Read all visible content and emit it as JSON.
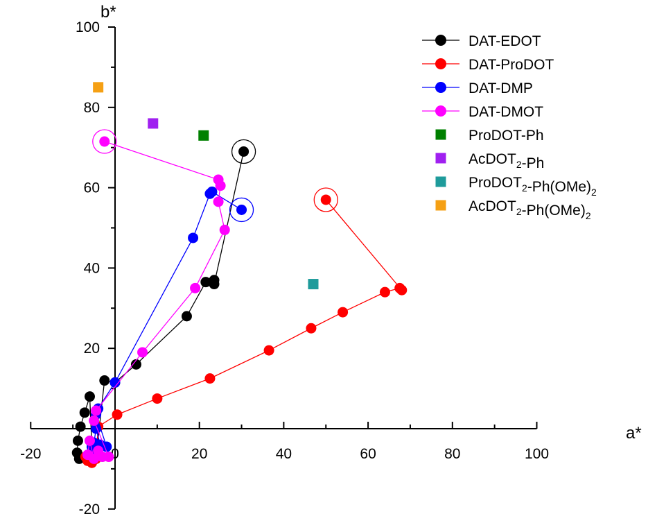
{
  "chart_data": {
    "type": "scatter",
    "xlabel": "a*",
    "ylabel": "b*",
    "xlim": [
      -20,
      100
    ],
    "ylim": [
      -20,
      100
    ],
    "xticks": [
      -20,
      0,
      20,
      40,
      60,
      80,
      100
    ],
    "yticks": [
      -20,
      20,
      40,
      60,
      80,
      100
    ],
    "grid": false,
    "legend_position": "top-right",
    "series": [
      {
        "name": "DAT-EDOT",
        "color": "#000000",
        "marker": "circle",
        "connected": true,
        "x": [
          -8.5,
          -9.0,
          -8.8,
          -8.2,
          -7.2,
          -6.0,
          -5.5,
          -4.5,
          -2.5,
          0.0,
          5.0,
          17.0,
          21.5,
          23.5,
          23.5,
          30.5
        ],
        "y": [
          -7.5,
          -6.0,
          -3.0,
          0.5,
          4.0,
          8.0,
          -4.5,
          -7.0,
          12.0,
          11.5,
          16.0,
          28.0,
          36.5,
          37.0,
          36.0,
          69.0
        ],
        "endpoint_ring": [
          30.5,
          69.0
        ]
      },
      {
        "name": "DAT-ProDOT",
        "color": "#ff0000",
        "marker": "circle",
        "connected": true,
        "x": [
          -7.0,
          -6.5,
          -5.5,
          -4.5,
          -4.0,
          0.5,
          10.0,
          22.5,
          36.5,
          46.5,
          54.0,
          64.0,
          67.5,
          68.0,
          50.0
        ],
        "y": [
          -7.0,
          -8.0,
          -8.5,
          -7.5,
          0.5,
          3.5,
          7.5,
          12.5,
          19.5,
          25.0,
          29.0,
          34.0,
          35.0,
          34.5,
          57.0
        ],
        "endpoint_ring": [
          50.0,
          57.0
        ]
      },
      {
        "name": "DAT-DMP",
        "color": "#0000ff",
        "marker": "circle",
        "connected": true,
        "x": [
          -6.0,
          -5.5,
          -5.0,
          -4.5,
          -3.5,
          -2.0,
          -4.5,
          -4.0,
          0.0,
          18.5,
          22.5,
          23.0,
          30.0
        ],
        "y": [
          -6.5,
          -4.5,
          -3.5,
          0.0,
          -4.0,
          -4.5,
          3.5,
          5.0,
          11.5,
          47.5,
          58.5,
          59.0,
          54.5
        ],
        "endpoint_ring": [
          30.0,
          54.5
        ]
      },
      {
        "name": "DAT-DMOT",
        "color": "#ff00ff",
        "marker": "circle",
        "connected": true,
        "x": [
          -6.5,
          -6.0,
          -5.0,
          -4.0,
          -3.0,
          -1.5,
          -5.0,
          -4.5,
          6.5,
          19.0,
          26.0,
          24.5,
          25.0,
          24.5,
          -2.5
        ],
        "y": [
          -6.5,
          -3.0,
          -7.5,
          -5.5,
          -7.0,
          -7.0,
          2.0,
          4.5,
          19.0,
          35.0,
          49.5,
          56.5,
          60.5,
          62.0,
          71.5
        ],
        "endpoint_ring": [
          -2.5,
          71.5
        ]
      },
      {
        "name": "ProDOT-Ph",
        "color": "#008000",
        "marker": "square",
        "connected": false,
        "x": [
          21.0
        ],
        "y": [
          73.0
        ]
      },
      {
        "name": "AcDOT2-Ph",
        "color": "#a020f0",
        "marker": "square",
        "connected": false,
        "x": [
          9.0
        ],
        "y": [
          76.0
        ]
      },
      {
        "name": "ProDOT2-Ph(OMe)2",
        "color": "#1e9b9b",
        "marker": "square",
        "connected": false,
        "x": [
          47.0
        ],
        "y": [
          36.0
        ]
      },
      {
        "name": "AcDOT2-Ph(OMe)2",
        "color": "#f5a014",
        "marker": "square",
        "connected": false,
        "x": [
          -4.0
        ],
        "y": [
          85.0
        ]
      }
    ]
  },
  "legend": [
    {
      "base": "DAT-EDOT",
      "sub1": "",
      "mid": "",
      "sub2": ""
    },
    {
      "base": "DAT-ProDOT",
      "sub1": "",
      "mid": "",
      "sub2": ""
    },
    {
      "base": "DAT-DMP",
      "sub1": "",
      "mid": "",
      "sub2": ""
    },
    {
      "base": "DAT-DMOT",
      "sub1": "",
      "mid": "",
      "sub2": ""
    },
    {
      "base": "ProDOT-Ph",
      "sub1": "",
      "mid": "",
      "sub2": ""
    },
    {
      "base": "AcDOT",
      "sub1": "2",
      "mid": "-Ph",
      "sub2": ""
    },
    {
      "base": "ProDOT",
      "sub1": "2",
      "mid": "-Ph(OMe)",
      "sub2": "2"
    },
    {
      "base": "AcDOT",
      "sub1": "2",
      "mid": "-Ph(OMe)",
      "sub2": "2"
    }
  ]
}
